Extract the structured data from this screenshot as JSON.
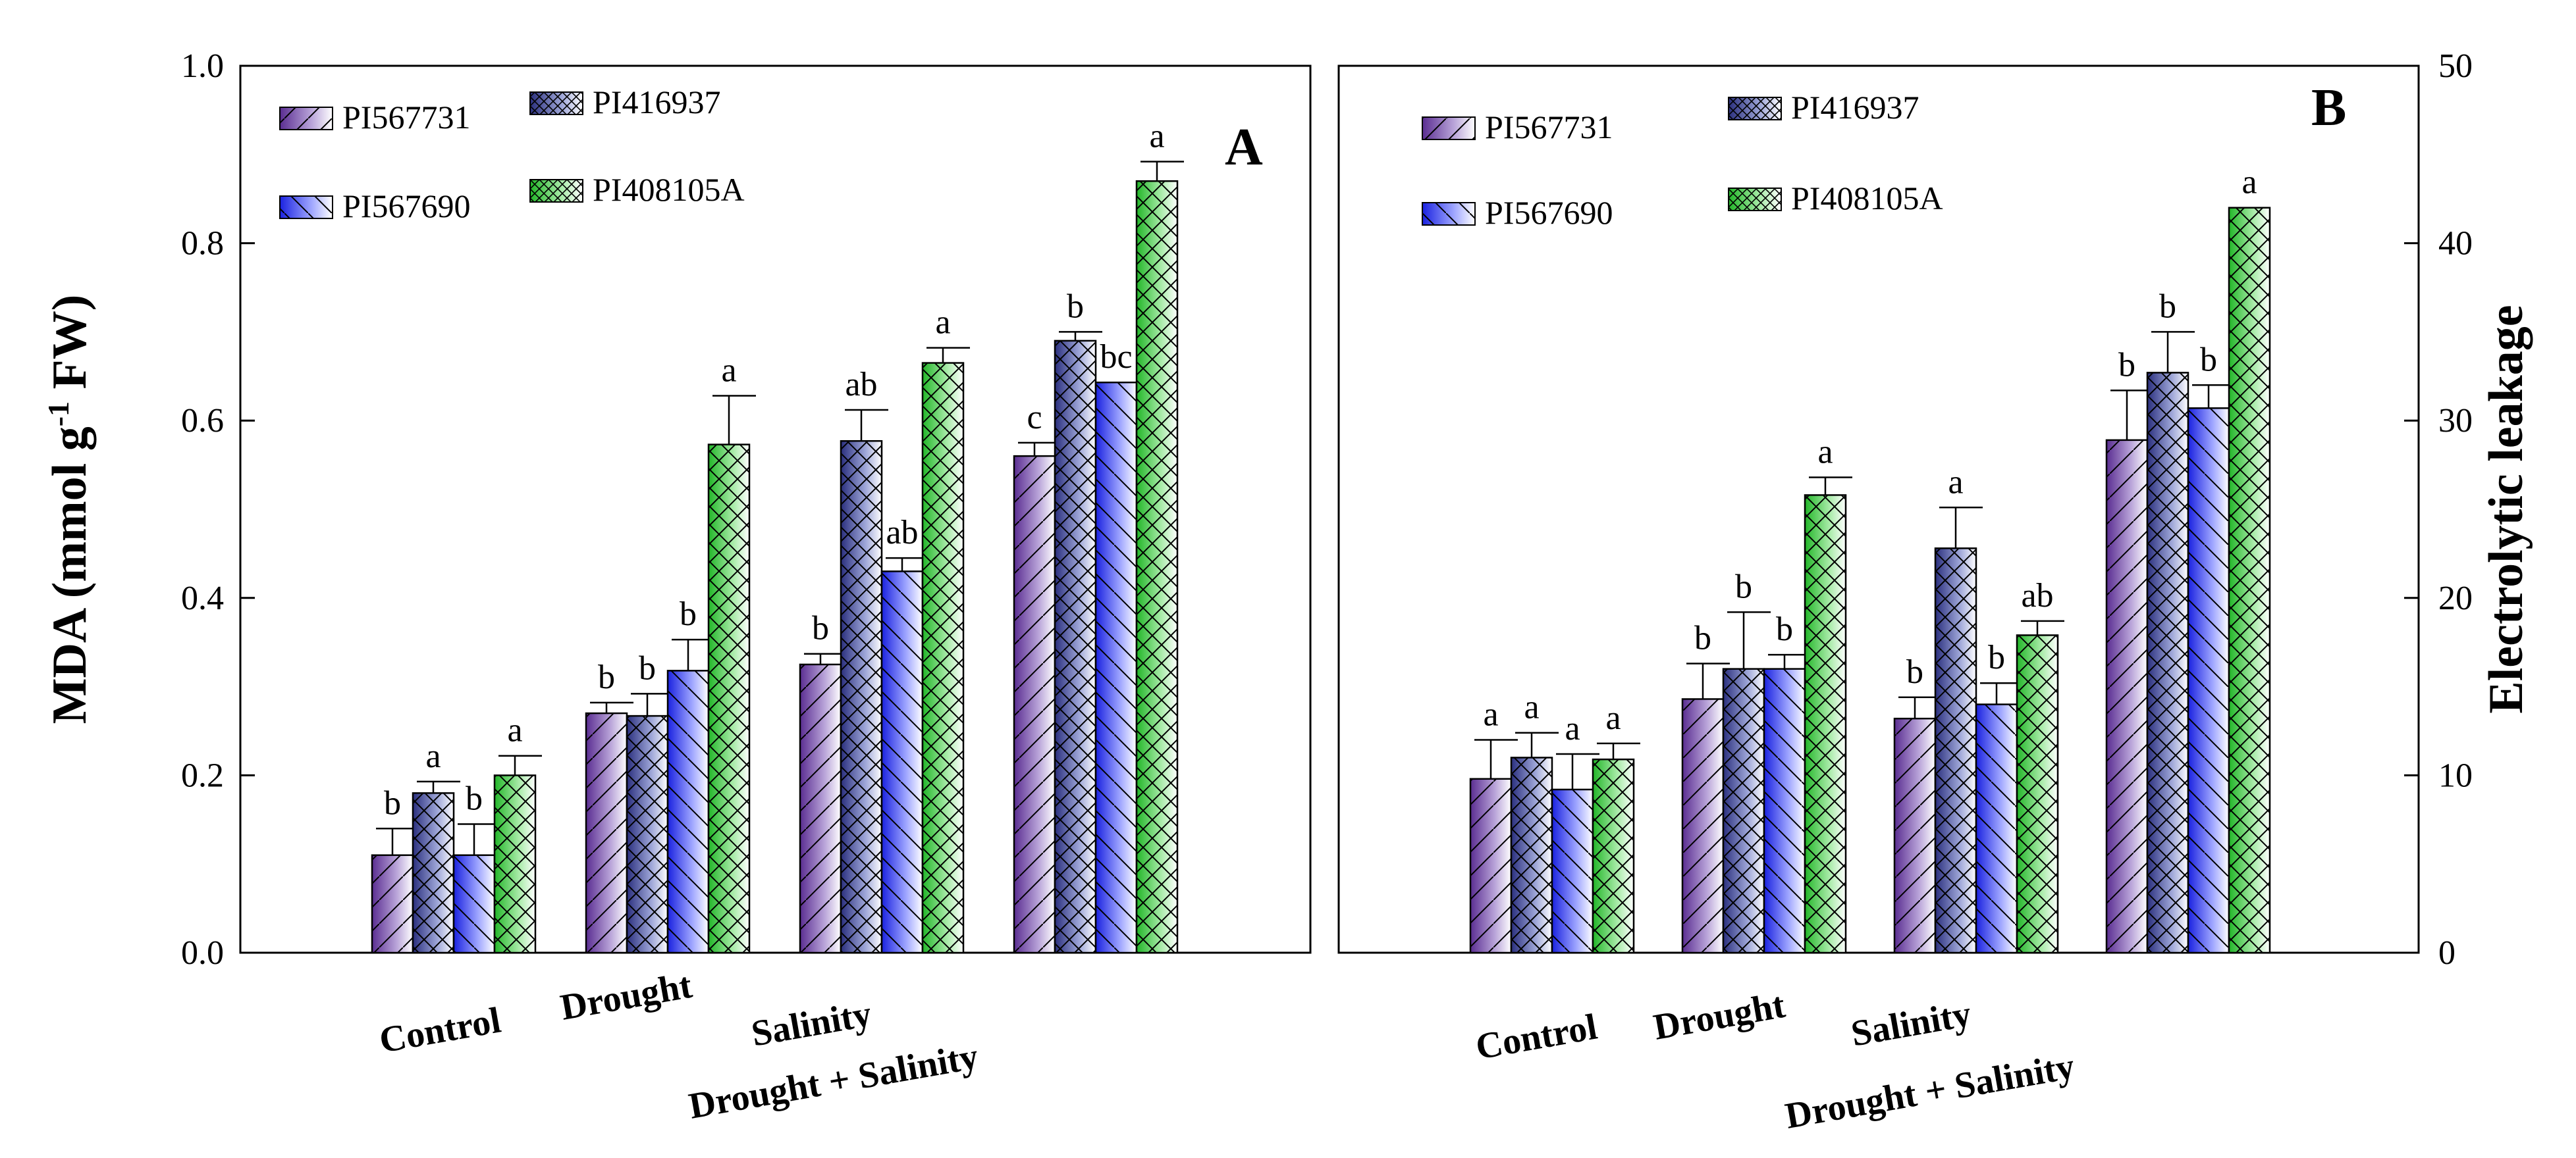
{
  "chart_data": [
    {
      "panel": "A",
      "type": "bar",
      "categories": [
        "Control",
        "Drought",
        "Salinity",
        "Drought + Salinity"
      ],
      "ylabel_main": "MDA (mmol g",
      "ylabel_sup": "-1",
      "ylabel_tail": " FW)",
      "ylim": [
        0,
        1.0
      ],
      "yticks": [
        "0.0",
        "0.2",
        "0.4",
        "0.6",
        "0.8",
        "1.0"
      ],
      "ytick_values": [
        0,
        0.2,
        0.4,
        0.6,
        0.8,
        1.0
      ],
      "legend_position": "top-left",
      "series": [
        {
          "name": "PI567731",
          "values": [
            0.11,
            0.27,
            0.325,
            0.56
          ],
          "errors": [
            0.03,
            0.012,
            0.012,
            0.015
          ],
          "labels": [
            "b",
            "b",
            "b",
            "c"
          ]
        },
        {
          "name": "PI416937",
          "values": [
            0.18,
            0.267,
            0.577,
            0.69
          ],
          "errors": [
            0.013,
            0.025,
            0.035,
            0.01
          ],
          "labels": [
            "a",
            "b",
            "ab",
            "b"
          ]
        },
        {
          "name": "PI567690",
          "values": [
            0.11,
            0.318,
            0.43,
            0.643
          ],
          "errors": [
            0.035,
            0.035,
            0.015,
            0.0
          ],
          "labels": [
            "b",
            "b",
            "ab",
            "bc"
          ]
        },
        {
          "name": "PI408105A",
          "values": [
            0.2,
            0.573,
            0.665,
            0.87
          ],
          "errors": [
            0.022,
            0.055,
            0.017,
            0.022
          ],
          "labels": [
            "a",
            "a",
            "a",
            "a"
          ]
        }
      ]
    },
    {
      "panel": "B",
      "type": "bar",
      "categories": [
        "Control",
        "Drought",
        "Salinity",
        "Drought + Salinity"
      ],
      "ylabel": "Electrolytic leakage",
      "ylim": [
        0,
        50
      ],
      "yticks": [
        "0",
        "10",
        "20",
        "30",
        "40",
        "50"
      ],
      "ytick_values": [
        0,
        10,
        20,
        30,
        40,
        50
      ],
      "legend_position": "top-left",
      "series": [
        {
          "name": "PI567731",
          "values": [
            9.8,
            14.3,
            13.2,
            28.9
          ],
          "errors": [
            2.2,
            2.0,
            1.2,
            2.8
          ],
          "labels": [
            "a",
            "b",
            "b",
            "b"
          ]
        },
        {
          "name": "PI416937",
          "values": [
            11.0,
            16.0,
            22.8,
            32.7
          ],
          "errors": [
            1.4,
            3.2,
            2.3,
            2.3
          ],
          "labels": [
            "a",
            "b",
            "a",
            "b"
          ]
        },
        {
          "name": "PI567690",
          "values": [
            9.2,
            16.0,
            14.0,
            30.7
          ],
          "errors": [
            2.0,
            0.8,
            1.2,
            1.3
          ],
          "labels": [
            "a",
            "b",
            "b",
            "b"
          ]
        },
        {
          "name": "PI408105A",
          "values": [
            10.9,
            25.8,
            17.9,
            42.0
          ],
          "errors": [
            0.9,
            1.0,
            0.8,
            0.0
          ],
          "labels": [
            "a",
            "a",
            "ab",
            "a"
          ]
        }
      ]
    }
  ],
  "colors": {
    "PI567731": "#5a2d91",
    "PI416937": "#2a2f7e",
    "PI567690": "#1a22e0",
    "PI408105A": "#22b628"
  }
}
